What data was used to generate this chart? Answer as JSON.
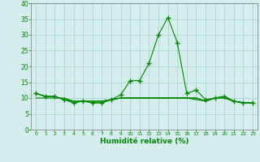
{
  "x": [
    0,
    1,
    2,
    3,
    4,
    5,
    6,
    7,
    8,
    9,
    10,
    11,
    12,
    13,
    14,
    15,
    16,
    17,
    18,
    19,
    20,
    21,
    22,
    23
  ],
  "y_main": [
    11.5,
    10.5,
    10.5,
    9.5,
    8.5,
    9.0,
    8.5,
    8.5,
    9.5,
    11.0,
    15.5,
    15.5,
    21.0,
    30.0,
    35.5,
    27.5,
    11.5,
    12.5,
    9.5,
    10.0,
    10.5,
    9.0,
    8.5,
    8.5
  ],
  "y_line2": [
    11.5,
    10.5,
    10.5,
    9.5,
    8.5,
    9.0,
    8.5,
    8.5,
    9.5,
    10.0,
    10.0,
    10.0,
    10.0,
    10.0,
    10.0,
    10.0,
    10.0,
    9.5,
    9.0,
    10.0,
    10.5,
    9.0,
    8.5,
    8.5
  ],
  "y_line3": [
    11.5,
    10.5,
    10.5,
    9.5,
    9.0,
    9.0,
    9.0,
    9.0,
    9.5,
    10.0,
    10.0,
    10.0,
    10.0,
    10.0,
    10.0,
    10.0,
    10.0,
    10.0,
    9.0,
    10.0,
    10.0,
    9.0,
    8.5,
    8.5
  ],
  "y_line4": [
    10.0,
    10.0,
    10.0,
    10.0,
    9.0,
    9.0,
    9.0,
    9.0,
    9.5,
    10.0,
    10.0,
    10.0,
    10.0,
    10.0,
    10.0,
    10.0,
    10.0,
    10.0,
    9.0,
    10.0,
    10.0,
    9.0,
    8.5,
    8.5
  ],
  "line_color": "#008800",
  "bg_color": "#d4eeed",
  "grid_color": "#a8cece",
  "xlabel": "Humidité relative (%)",
  "ylim": [
    0,
    40
  ],
  "xlim": [
    -0.5,
    23.5
  ],
  "yticks": [
    0,
    5,
    10,
    15,
    20,
    25,
    30,
    35,
    40
  ],
  "xticks": [
    0,
    1,
    2,
    3,
    4,
    5,
    6,
    7,
    8,
    9,
    10,
    11,
    12,
    13,
    14,
    15,
    16,
    17,
    18,
    19,
    20,
    21,
    22,
    23
  ]
}
